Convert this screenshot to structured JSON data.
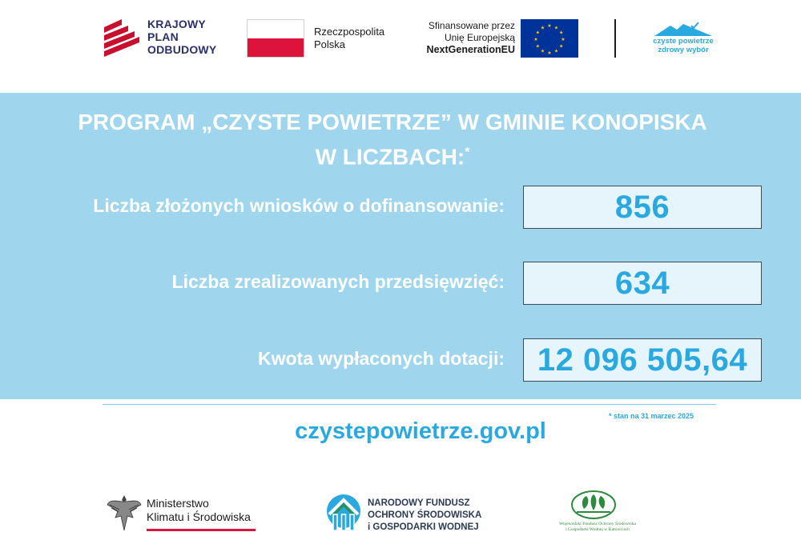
{
  "header": {
    "kpo": {
      "line1": "KRAJOWY",
      "line2": "PLAN",
      "line3": "ODBUDOWY",
      "color": "#2b2f6b",
      "accent": "#c8102e"
    },
    "rp": {
      "line1": "Rzeczpospolita",
      "line2": "Polska"
    },
    "eu": {
      "line1": "Sfinansowane przez",
      "line2": "Unię Europejską",
      "line3": "NextGenerationEU",
      "flag_color": "#003399",
      "star_color": "#ffcc00"
    },
    "cpz": {
      "line1": "czyste powietrze",
      "line2": "zdrowy wybór",
      "color": "#2aa8e0"
    }
  },
  "panel": {
    "title_line1": "PROGRAM „CZYSTE POWIETRZE” W GMINIE KONOPISKA",
    "title_line2": "W LICZBACH:",
    "title_mark": "*",
    "background": "#9fd6ee",
    "stats": [
      {
        "label": "Liczba złożonych wniosków o dofinansowanie:",
        "value": "856"
      },
      {
        "label": "Liczba zrealizowanych przedsięwzięć:",
        "value": "634"
      },
      {
        "label": "Kwota wypłaconych dotacji:",
        "value": "12 096 505,64"
      }
    ],
    "value_color": "#2aa8e0"
  },
  "footer": {
    "footnote": "* stan na 31 marzec 2025",
    "website": "czystepowietrze.gov.pl",
    "mkis": {
      "line1": "Ministerstwo",
      "line2": "Klimatu i Środowiska"
    },
    "nfosigw": {
      "line1": "NARODOWY FUNDUSZ",
      "line2": "OCHRONY ŚRODOWISKA",
      "line3": "i GOSPODARKI WODNEJ"
    },
    "wfosigw": {
      "line1": "Wojewódzki Fundusz Ochrony Środowiska",
      "line2": "i Gospodarki Wodnej w Katowicach",
      "color": "#2f8a3e"
    }
  }
}
